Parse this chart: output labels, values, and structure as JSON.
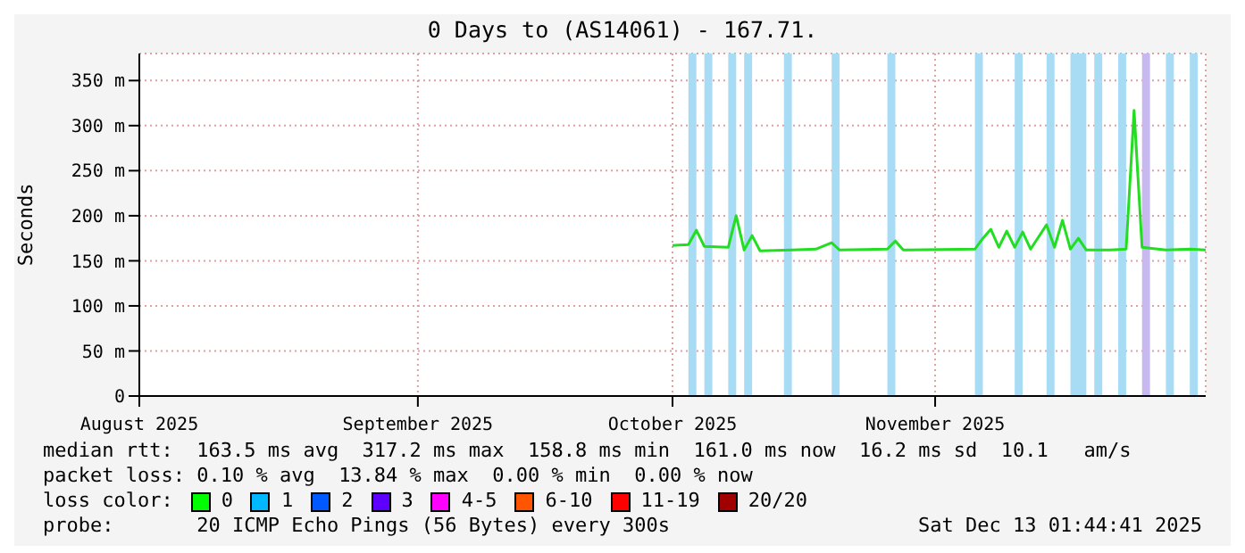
{
  "chart_data": {
    "type": "line",
    "title": "0 Days to (AS14061) - 167.71.",
    "ylabel": "Seconds",
    "xlim": [
      "2025-08-01",
      "2025-12-13"
    ],
    "xticks": [
      {
        "value": "2025-08-01",
        "label": "August 2025"
      },
      {
        "value": "2025-09-05",
        "label": "September 2025"
      },
      {
        "value": "2025-10-07",
        "label": "October 2025"
      },
      {
        "value": "2025-11-09",
        "label": "November 2025"
      }
    ],
    "ylim": [
      0,
      380
    ],
    "yticks": [
      {
        "value": 0,
        "label": "0"
      },
      {
        "value": 50,
        "label": "50 m"
      },
      {
        "value": 100,
        "label": "100 m"
      },
      {
        "value": 150,
        "label": "150 m"
      },
      {
        "value": 200,
        "label": "200 m"
      },
      {
        "value": 250,
        "label": "250 m"
      },
      {
        "value": 300,
        "label": "300 m"
      },
      {
        "value": 350,
        "label": "350 m"
      }
    ],
    "grid": true,
    "marker": "none",
    "line_style": "solid",
    "x": [
      "2025-10-07",
      "2025-10-09",
      "2025-10-10",
      "2025-10-11",
      "2025-10-14",
      "2025-10-15",
      "2025-10-16",
      "2025-10-17",
      "2025-10-18",
      "2025-10-22",
      "2025-10-25",
      "2025-10-27",
      "2025-10-28",
      "2025-11-03",
      "2025-11-04",
      "2025-11-05",
      "2025-11-14",
      "2025-11-15",
      "2025-11-16",
      "2025-11-17",
      "2025-11-18",
      "2025-11-19",
      "2025-11-20",
      "2025-11-21",
      "2025-11-23",
      "2025-11-24",
      "2025-11-25",
      "2025-11-26",
      "2025-11-27",
      "2025-11-28",
      "2025-12-01",
      "2025-12-03",
      "2025-12-04",
      "2025-12-05",
      "2025-12-08",
      "2025-12-11",
      "2025-12-13"
    ],
    "series": [
      {
        "color": "#22dd22",
        "values": [
          167,
          168,
          184,
          166,
          165,
          200,
          162,
          178,
          161,
          162,
          163,
          170,
          162,
          163,
          172,
          162,
          163,
          175,
          185,
          165,
          183,
          165,
          182,
          163,
          190,
          165,
          195,
          163,
          175,
          162,
          162,
          163,
          317,
          165,
          162,
          163,
          162
        ]
      }
    ],
    "bands": [
      {
        "axis": "x",
        "from": "2025-10-09",
        "to": "2025-10-10",
        "color": "#a8dcf5"
      },
      {
        "axis": "x",
        "from": "2025-10-11",
        "to": "2025-10-12",
        "color": "#a8dcf5"
      },
      {
        "axis": "x",
        "from": "2025-10-14",
        "to": "2025-10-15",
        "color": "#a8dcf5"
      },
      {
        "axis": "x",
        "from": "2025-10-16",
        "to": "2025-10-17",
        "color": "#a8dcf5"
      },
      {
        "axis": "x",
        "from": "2025-10-21",
        "to": "2025-10-22",
        "color": "#a8dcf5"
      },
      {
        "axis": "x",
        "from": "2025-10-27",
        "to": "2025-10-28",
        "color": "#a8dcf5"
      },
      {
        "axis": "x",
        "from": "2025-11-03",
        "to": "2025-11-04",
        "color": "#a8dcf5"
      },
      {
        "axis": "x",
        "from": "2025-11-14",
        "to": "2025-11-15",
        "color": "#a8dcf5"
      },
      {
        "axis": "x",
        "from": "2025-11-19",
        "to": "2025-11-20",
        "color": "#a8dcf5"
      },
      {
        "axis": "x",
        "from": "2025-11-23",
        "to": "2025-11-24",
        "color": "#a8dcf5"
      },
      {
        "axis": "x",
        "from": "2025-11-26",
        "to": "2025-11-28",
        "color": "#a8dcf5"
      },
      {
        "axis": "x",
        "from": "2025-11-29",
        "to": "2025-11-30",
        "color": "#a8dcf5"
      },
      {
        "axis": "x",
        "from": "2025-12-02",
        "to": "2025-12-03",
        "color": "#a8dcf5"
      },
      {
        "axis": "x",
        "from": "2025-12-05",
        "to": "2025-12-06",
        "color": "#c8b8f0"
      },
      {
        "axis": "x",
        "from": "2025-12-08",
        "to": "2025-12-09",
        "color": "#a8dcf5"
      },
      {
        "axis": "x",
        "from": "2025-12-11",
        "to": "2025-12-12",
        "color": "#a8dcf5"
      }
    ],
    "annotations": [
      "median rtt:  163.5 ms avg  317.2 ms max  158.8 ms min  161.0 ms now  16.2 ms sd  10.1   am/s",
      "packet loss: 0.10 % avg  13.84 % max  0.00 % min  0.00 % now",
      "loss color:",
      "0",
      "1",
      "2",
      "3",
      "4-5",
      "6-10",
      "11-19",
      "20/20",
      "probe:       20 ICMP Echo Pings (56 Bytes) every 300s",
      "Sat Dec 13 01:44:41 2025"
    ]
  }
}
